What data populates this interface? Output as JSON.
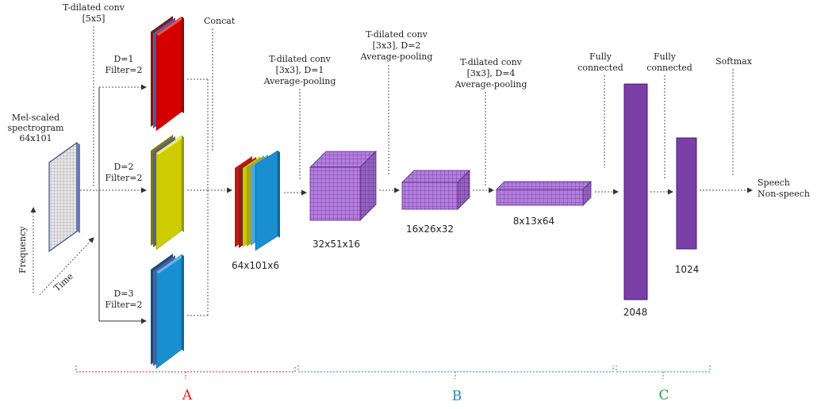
{
  "input": {
    "title_lines": [
      "Mel-scaled",
      "spectrogram",
      "64x101"
    ],
    "axis_frequency": "Frequency",
    "axis_time": "Time"
  },
  "branch_header": [
    "T-dilated conv",
    "[5x5]"
  ],
  "concat_label": "Concat",
  "branches": [
    {
      "lines": [
        "D=1",
        "Filter=2"
      ],
      "color": "#d40000"
    },
    {
      "lines": [
        "D=2",
        "Filter=2"
      ],
      "color": "#cccc00"
    },
    {
      "lines": [
        "D=3",
        "Filter=2"
      ],
      "color": "#1a8fd0"
    }
  ],
  "concat_dim": "64x101x6",
  "convs": [
    {
      "lines": [
        "T-dilated conv",
        "[3x3], D=1",
        "Average-pooling"
      ],
      "dim": "32x51x16"
    },
    {
      "lines": [
        "T-dilated conv",
        "[3x3], D=2",
        "Average-pooling"
      ],
      "dim": "16x26x32"
    },
    {
      "lines": [
        "T-dilated conv",
        "[3x3], D=4",
        "Average-pooling"
      ],
      "dim": "8x13x64"
    }
  ],
  "fc1": {
    "lines": [
      "Fully",
      "connected"
    ],
    "dim": "2048"
  },
  "fc2": {
    "lines": [
      "Fully",
      "connected"
    ],
    "dim": "1024"
  },
  "softmax": "Softmax",
  "outputs": [
    "Speech",
    "Non-speech"
  ],
  "sections": [
    {
      "label": "A",
      "color": "#e02020"
    },
    {
      "label": "B",
      "color": "#2a7fc0"
    },
    {
      "label": "C",
      "color": "#20a040"
    }
  ],
  "colors": {
    "purple": "#7b3fa8",
    "purple_light": "#b080d8",
    "grey_grid": "#c8c8c8"
  }
}
